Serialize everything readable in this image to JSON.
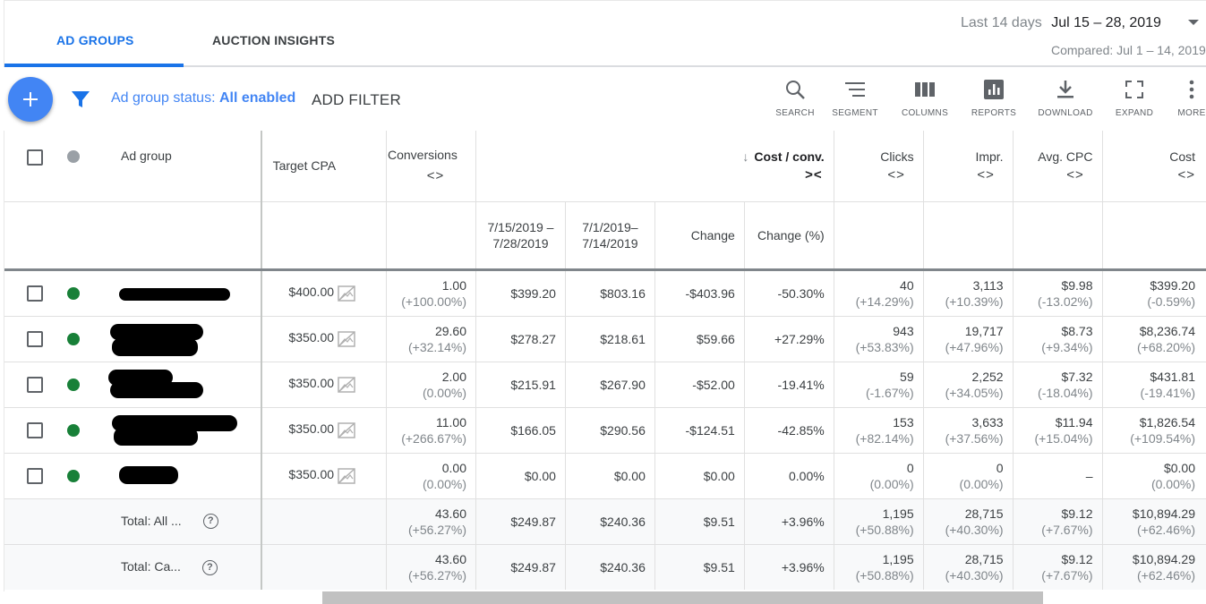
{
  "tabs": [
    {
      "label": "AD GROUPS",
      "active": true
    },
    {
      "label": "AUCTION INSIGHTS",
      "active": false
    }
  ],
  "date": {
    "label": "Last 14 days",
    "range": "Jul 15 – 28, 2019",
    "compared": "Compared: Jul 1 – 14, 2019"
  },
  "toolbar": {
    "status_prefix": "Ad group status:",
    "status_value": "All enabled",
    "add_filter": "ADD FILTER",
    "tools": [
      {
        "label": "SEARCH",
        "icon": "search-icon"
      },
      {
        "label": "SEGMENT",
        "icon": "segment-icon"
      },
      {
        "label": "COLUMNS",
        "icon": "columns-icon"
      },
      {
        "label": "REPORTS",
        "icon": "reports-icon"
      },
      {
        "label": "DOWNLOAD",
        "icon": "download-icon"
      },
      {
        "label": "EXPAND",
        "icon": "expand-icon"
      },
      {
        "label": "MORE",
        "icon": "more-icon"
      }
    ]
  },
  "columns": {
    "ad_group": "Ad group",
    "target_cpa": "Target CPA",
    "conversions": "Conversions",
    "cost_conv": "Cost / conv.",
    "clicks": "Clicks",
    "impr": "Impr.",
    "avg_cpc": "Avg. CPC",
    "cost": "Cost",
    "sort_arrow": "↓",
    "expand": "<>",
    "collapse": "><",
    "sub": {
      "period1": "7/15/2019 – 7/28/2019",
      "period2": "7/1/2019– 7/14/2019",
      "change": "Change",
      "change_pct": "Change (%)"
    }
  },
  "rows": [
    {
      "target_cpa": "$400.00",
      "conv": "1.00",
      "conv_d": "(+100.00%)",
      "cpc1": "$399.20",
      "cpc2": "$803.16",
      "chg": "-$403.96",
      "chgp": "-50.30%",
      "clicks": "40",
      "clicks_d": "(+14.29%)",
      "impr": "3,113",
      "impr_d": "(+10.39%)",
      "avgcpc": "$9.98",
      "avgcpc_d": "(-13.02%)",
      "cost": "$399.20",
      "cost_d": "(-0.59%)"
    },
    {
      "target_cpa": "$350.00",
      "conv": "29.60",
      "conv_d": "(+32.14%)",
      "cpc1": "$278.27",
      "cpc2": "$218.61",
      "chg": "$59.66",
      "chgp": "+27.29%",
      "clicks": "943",
      "clicks_d": "(+53.83%)",
      "impr": "19,717",
      "impr_d": "(+47.96%)",
      "avgcpc": "$8.73",
      "avgcpc_d": "(+9.34%)",
      "cost": "$8,236.74",
      "cost_d": "(+68.20%)"
    },
    {
      "target_cpa": "$350.00",
      "conv": "2.00",
      "conv_d": "(0.00%)",
      "cpc1": "$215.91",
      "cpc2": "$267.90",
      "chg": "-$52.00",
      "chgp": "-19.41%",
      "clicks": "59",
      "clicks_d": "(-1.67%)",
      "impr": "2,252",
      "impr_d": "(+34.05%)",
      "avgcpc": "$7.32",
      "avgcpc_d": "(-18.04%)",
      "cost": "$431.81",
      "cost_d": "(-19.41%)"
    },
    {
      "target_cpa": "$350.00",
      "conv": "11.00",
      "conv_d": "(+266.67%)",
      "cpc1": "$166.05",
      "cpc2": "$290.56",
      "chg": "-$124.51",
      "chgp": "-42.85%",
      "clicks": "153",
      "clicks_d": "(+82.14%)",
      "impr": "3,633",
      "impr_d": "(+37.56%)",
      "avgcpc": "$11.94",
      "avgcpc_d": "(+15.04%)",
      "cost": "$1,826.54",
      "cost_d": "(+109.54%)"
    },
    {
      "target_cpa": "$350.00",
      "conv": "0.00",
      "conv_d": "(0.00%)",
      "cpc1": "$0.00",
      "cpc2": "$0.00",
      "chg": "$0.00",
      "chgp": "0.00%",
      "clicks": "0",
      "clicks_d": "(0.00%)",
      "impr": "0",
      "impr_d": "(0.00%)",
      "avgcpc": "–",
      "avgcpc_d": "",
      "cost": "$0.00",
      "cost_d": "(0.00%)"
    }
  ],
  "totals": [
    {
      "label": "Total: All ...",
      "conv": "43.60",
      "conv_d": "(+56.27%)",
      "cpc1": "$249.87",
      "cpc2": "$240.36",
      "chg": "$9.51",
      "chgp": "+3.96%",
      "clicks": "1,195",
      "clicks_d": "(+50.88%)",
      "impr": "28,715",
      "impr_d": "(+40.30%)",
      "avgcpc": "$9.12",
      "avgcpc_d": "(+7.67%)",
      "cost": "$10,894.29",
      "cost_d": "(+62.46%)"
    },
    {
      "label": "Total: Ca...",
      "conv": "43.60",
      "conv_d": "(+56.27%)",
      "cpc1": "$249.87",
      "cpc2": "$240.36",
      "chg": "$9.51",
      "chgp": "+3.96%",
      "clicks": "1,195",
      "clicks_d": "(+50.88%)",
      "impr": "28,715",
      "impr_d": "(+40.30%)",
      "avgcpc": "$9.12",
      "avgcpc_d": "(+7.67%)",
      "cost": "$10,894.29",
      "cost_d": "(+62.46%)"
    }
  ],
  "help_glyph": "?"
}
